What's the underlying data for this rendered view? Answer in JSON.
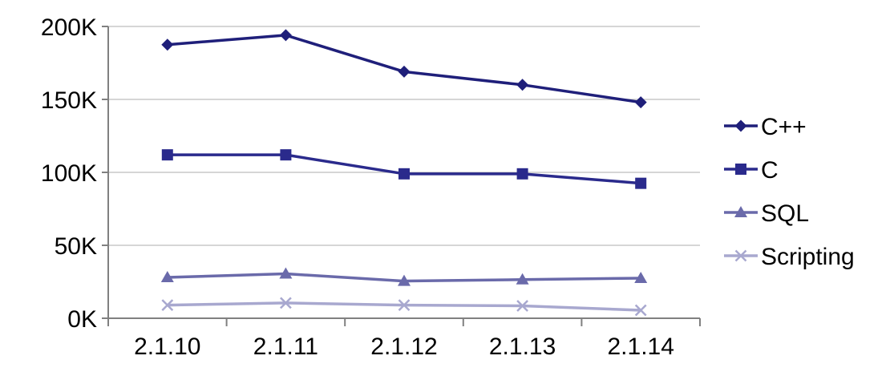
{
  "chart_data": {
    "type": "line",
    "title": "",
    "xlabel": "",
    "ylabel": "",
    "categories": [
      "2.1.10",
      "2.1.11",
      "2.1.12",
      "2.1.13",
      "2.1.14"
    ],
    "ylim": [
      0,
      200000
    ],
    "yticks": [
      0,
      50000,
      100000,
      150000,
      200000
    ],
    "ytick_labels": [
      "0K",
      "50K",
      "100K",
      "150K",
      "200K"
    ],
    "grid": true,
    "legend_position": "right",
    "series": [
      {
        "name": "C++",
        "marker": "diamond",
        "color": "#1f1f7a",
        "values": [
          187500,
          194000,
          169000,
          160000,
          148000
        ]
      },
      {
        "name": "C",
        "marker": "square",
        "color": "#2a2a8c",
        "values": [
          112000,
          112000,
          99000,
          99000,
          92500
        ]
      },
      {
        "name": "SQL",
        "marker": "triangle",
        "color": "#6a6aaa",
        "values": [
          28000,
          30500,
          25500,
          26500,
          27500
        ]
      },
      {
        "name": "Scripting",
        "marker": "x",
        "color": "#a8a8cf",
        "values": [
          9000,
          10500,
          9000,
          8500,
          5500
        ]
      }
    ]
  }
}
